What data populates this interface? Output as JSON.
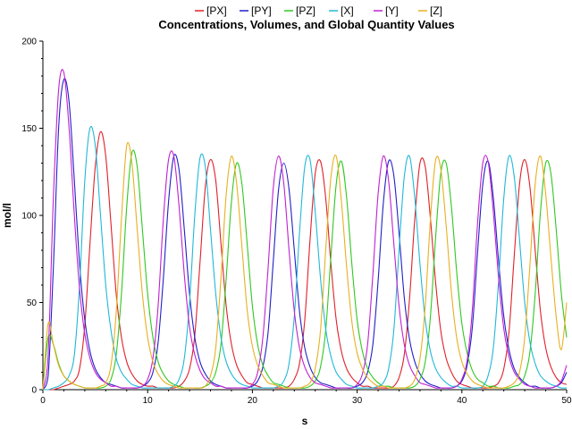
{
  "chart_data": {
    "type": "line",
    "title": "Concentrations, Volumes, and Global Quantity Values",
    "xlabel": "s",
    "ylabel": "mol/l",
    "xlim": [
      0,
      50
    ],
    "ylim": [
      0,
      200
    ],
    "xticks": [
      0,
      10,
      20,
      30,
      40,
      50
    ],
    "yticks": [
      0,
      50,
      100,
      150,
      200
    ],
    "grid": false,
    "legend_position": "top",
    "x": [
      0,
      0.5,
      1,
      1.5,
      2,
      2.5,
      3,
      3.5,
      4,
      4.5,
      5,
      5.5,
      6,
      6.5,
      7,
      7.5,
      8,
      8.5,
      9,
      9.5,
      10,
      10.5,
      11,
      11.5,
      12,
      12.5,
      13,
      13.5,
      14,
      14.5,
      15,
      15.5,
      16,
      16.5,
      17,
      17.5,
      18,
      18.5,
      19,
      19.5,
      20,
      20.5,
      21,
      21.5,
      22,
      22.5,
      23,
      23.5,
      24,
      24.5,
      25,
      25.5,
      26,
      26.5,
      27,
      27.5,
      28,
      28.5,
      29,
      29.5,
      30,
      30.5,
      31,
      31.5,
      32,
      32.5,
      33,
      33.5,
      34,
      34.5,
      35,
      35.5,
      36,
      36.5,
      37,
      37.5,
      38,
      38.5,
      39,
      39.5,
      40,
      40.5,
      41,
      41.5,
      42,
      42.5,
      43,
      43.5,
      44,
      44.5,
      45,
      45.5,
      46,
      46.5,
      47,
      47.5,
      48,
      48.5,
      49,
      49.5,
      50
    ],
    "series": [
      {
        "name": "[PX]",
        "color": "#e0202a",
        "values": [
          0,
          0,
          0,
          1,
          2,
          3,
          5,
          12,
          37,
          84,
          128,
          148,
          134,
          95,
          55,
          30,
          16,
          9,
          5,
          3,
          2,
          2,
          1,
          1,
          1,
          1,
          2,
          5,
          12,
          31,
          73,
          116,
          132,
          120,
          84,
          48,
          26,
          14,
          8,
          4,
          3,
          2,
          1,
          1,
          1,
          1,
          1,
          2,
          6,
          15,
          40,
          86,
          124,
          131,
          110,
          72,
          40,
          22,
          12,
          7,
          4,
          2,
          2,
          1,
          1,
          1,
          1,
          2,
          7,
          20,
          52,
          98,
          130,
          128,
          98,
          61,
          33,
          18,
          10,
          5,
          3,
          2,
          1,
          1,
          1,
          1,
          2,
          4,
          12,
          33,
          77,
          118,
          132,
          116,
          80,
          45,
          24,
          13,
          7,
          4,
          3
        ]
      },
      {
        "name": "[PY]",
        "color": "#2020c8",
        "values": [
          0,
          8,
          70,
          150,
          178,
          165,
          120,
          72,
          40,
          22,
          12,
          7,
          4,
          3,
          2,
          1,
          1,
          1,
          1,
          2,
          4,
          10,
          27,
          64,
          108,
          134,
          126,
          92,
          55,
          30,
          16,
          9,
          5,
          3,
          2,
          1,
          1,
          1,
          1,
          1,
          2,
          5,
          13,
          33,
          74,
          115,
          130,
          115,
          80,
          45,
          24,
          13,
          7,
          4,
          3,
          2,
          1,
          1,
          1,
          1,
          2,
          4,
          10,
          26,
          62,
          107,
          131,
          123,
          90,
          53,
          29,
          16,
          9,
          5,
          3,
          2,
          1,
          1,
          1,
          2,
          5,
          14,
          36,
          79,
          118,
          131,
          110,
          74,
          42,
          23,
          12,
          7,
          4,
          2,
          2,
          1,
          1,
          1,
          2,
          4,
          10
        ]
      },
      {
        "name": "[PZ]",
        "color": "#30c820",
        "values": [
          0,
          30,
          26,
          15,
          8,
          5,
          3,
          2,
          1,
          1,
          1,
          1,
          2,
          6,
          20,
          55,
          105,
          136,
          128,
          92,
          55,
          30,
          16,
          9,
          5,
          3,
          2,
          1,
          1,
          1,
          1,
          2,
          4,
          10,
          26,
          64,
          108,
          130,
          118,
          84,
          48,
          26,
          14,
          8,
          4,
          3,
          2,
          1,
          1,
          1,
          1,
          2,
          5,
          13,
          34,
          77,
          118,
          131,
          110,
          72,
          40,
          22,
          12,
          7,
          4,
          2,
          2,
          1,
          1,
          1,
          1,
          2,
          6,
          16,
          42,
          88,
          125,
          130,
          105,
          68,
          38,
          21,
          11,
          6,
          4,
          2,
          2,
          1,
          1,
          1,
          2,
          3,
          8,
          22,
          55,
          102,
          130,
          124,
          92,
          55,
          30
        ]
      },
      {
        "name": "[X]",
        "color": "#20b8d8",
        "values": [
          0,
          0,
          1,
          2,
          4,
          8,
          20,
          60,
          120,
          150,
          140,
          100,
          60,
          34,
          18,
          10,
          6,
          3,
          2,
          1,
          1,
          1,
          1,
          1,
          1,
          2,
          6,
          18,
          50,
          100,
          133,
          128,
          92,
          55,
          30,
          16,
          9,
          5,
          3,
          2,
          1,
          1,
          1,
          1,
          1,
          2,
          5,
          15,
          42,
          90,
          128,
          132,
          102,
          64,
          35,
          19,
          10,
          6,
          3,
          2,
          1,
          1,
          1,
          1,
          2,
          4,
          12,
          34,
          80,
          122,
          134,
          110,
          72,
          40,
          22,
          12,
          7,
          4,
          2,
          2,
          1,
          1,
          1,
          1,
          2,
          8,
          24,
          62,
          110,
          134,
          122,
          86,
          50,
          27,
          15,
          8,
          5,
          3,
          2,
          1,
          1
        ]
      },
      {
        "name": "[Y]",
        "color": "#c020d0",
        "values": [
          0,
          20,
          110,
          172,
          182,
          150,
          100,
          58,
          32,
          18,
          10,
          6,
          4,
          2,
          2,
          1,
          1,
          1,
          1,
          2,
          6,
          18,
          48,
          98,
          132,
          134,
          105,
          66,
          36,
          20,
          11,
          6,
          4,
          2,
          2,
          1,
          1,
          1,
          1,
          1,
          3,
          10,
          30,
          70,
          116,
          134,
          118,
          80,
          45,
          24,
          13,
          7,
          4,
          3,
          2,
          1,
          1,
          1,
          1,
          1,
          3,
          9,
          26,
          66,
          112,
          134,
          120,
          84,
          48,
          26,
          14,
          8,
          4,
          3,
          2,
          1,
          1,
          1,
          1,
          2,
          6,
          17,
          46,
          96,
          130,
          131,
          102,
          64,
          35,
          19,
          10,
          6,
          3,
          2,
          1,
          1,
          1,
          1,
          2,
          5,
          14
        ]
      },
      {
        "name": "[Z]",
        "color": "#e8b020",
        "values": [
          0,
          38,
          26,
          14,
          8,
          5,
          3,
          2,
          1,
          1,
          1,
          2,
          4,
          14,
          44,
          98,
          140,
          130,
          92,
          55,
          30,
          16,
          9,
          5,
          3,
          2,
          1,
          1,
          1,
          1,
          1,
          2,
          8,
          24,
          64,
          112,
          134,
          118,
          82,
          46,
          25,
          14,
          8,
          4,
          3,
          2,
          1,
          1,
          1,
          1,
          2,
          4,
          12,
          34,
          80,
          122,
          134,
          108,
          70,
          39,
          21,
          12,
          7,
          4,
          2,
          2,
          1,
          1,
          1,
          1,
          2,
          6,
          18,
          48,
          98,
          132,
          126,
          94,
          56,
          30,
          16,
          9,
          5,
          3,
          2,
          1,
          1,
          1,
          1,
          2,
          4,
          10,
          30,
          72,
          118,
          134,
          112,
          76,
          42,
          23,
          50
        ]
      }
    ]
  }
}
